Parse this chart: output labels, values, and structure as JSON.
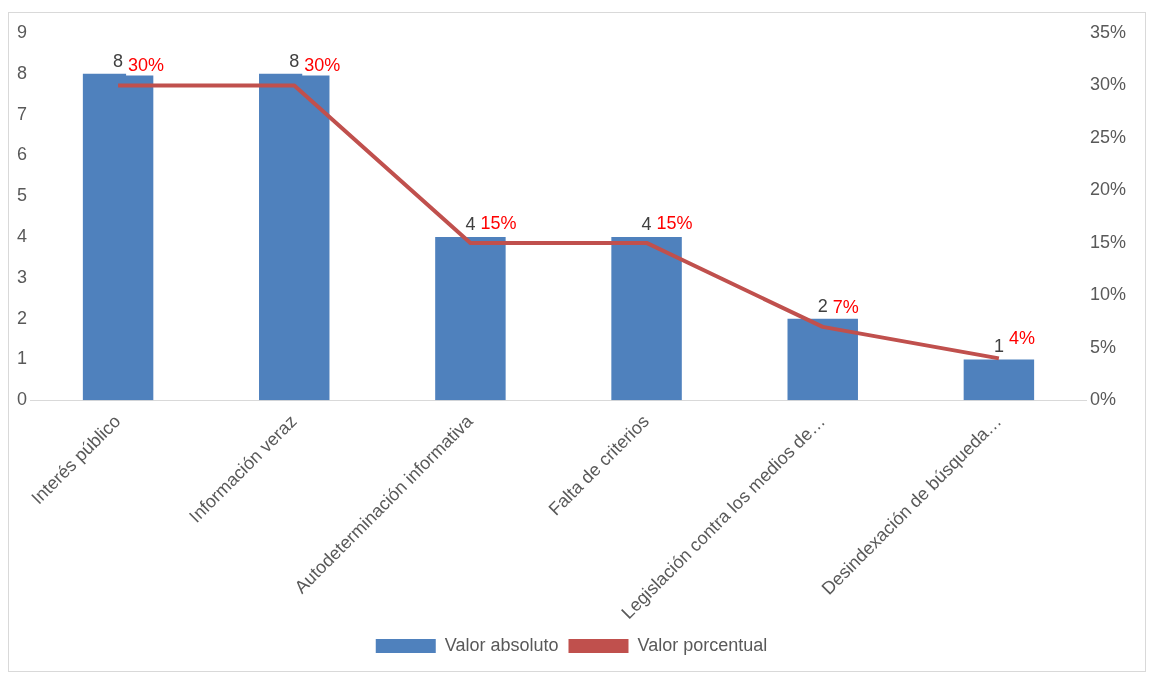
{
  "chart_data": {
    "type": "bar",
    "categories": [
      "Interés público",
      "Información veraz",
      "Autodeterminación informativa",
      "Falta de criterios",
      "Legislación contra los medios de…",
      "Desindexación de búsqueda…"
    ],
    "series": [
      {
        "name": "Valor absoluto",
        "color": "#4f81bd",
        "values": [
          8,
          8,
          4,
          4,
          2,
          1
        ],
        "value_labels": [
          "8",
          "8",
          "4",
          "4",
          "2",
          "1"
        ]
      },
      {
        "name": "Valor porcentual",
        "type": "line",
        "axis": "y2",
        "color": "#c0504d",
        "values": [
          30,
          30,
          15,
          15,
          7,
          4
        ],
        "value_labels": [
          "30%",
          "30%",
          "15%",
          "15%",
          "7%",
          "4%"
        ]
      }
    ],
    "ylim": [
      0,
      9
    ],
    "yticks": [
      0,
      1,
      2,
      3,
      4,
      5,
      6,
      7,
      8,
      9
    ],
    "y2lim": [
      0,
      35
    ],
    "y2ticks": [
      {
        "value": 0,
        "label": "0%"
      },
      {
        "value": 5,
        "label": "5%"
      },
      {
        "value": 10,
        "label": "10%"
      },
      {
        "value": 15,
        "label": "15%"
      },
      {
        "value": 20,
        "label": "20%"
      },
      {
        "value": 25,
        "label": "25%"
      },
      {
        "value": 30,
        "label": "30%"
      },
      {
        "value": 35,
        "label": "35%"
      }
    ],
    "legend": "bottom",
    "marker": "none"
  }
}
